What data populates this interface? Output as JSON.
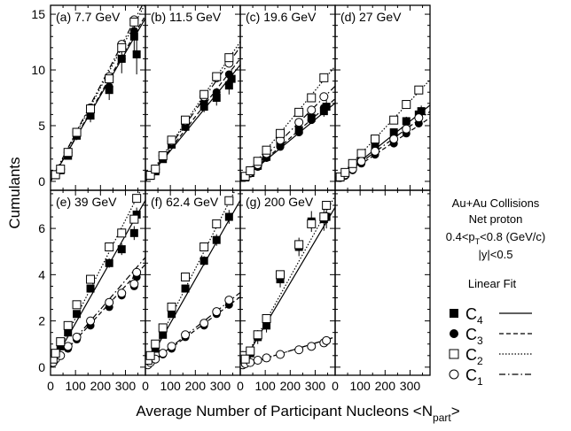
{
  "figure": {
    "ylabel": "Cumulants",
    "xlabel_main": "Average Number of Participant Nucleons <N",
    "xlabel_sub": "part",
    "xlabel_end": ">"
  },
  "legend": {
    "lines": [
      "Au+Au Collisions",
      "Net proton",
      "|y|<0.5"
    ],
    "pt_line": {
      "pre": "0.4<p",
      "sub": "T",
      "post": "<0.8 (GeV/c)"
    },
    "header": "Linear   Fit",
    "entries": [
      {
        "base": "C",
        "sub": "4",
        "marker": "filled-square",
        "dash": "solid"
      },
      {
        "base": "C",
        "sub": "3",
        "marker": "filled-circle",
        "dash": "dashed"
      },
      {
        "base": "C",
        "sub": "2",
        "marker": "open-square",
        "dash": "dotted"
      },
      {
        "base": "C",
        "sub": "1",
        "marker": "open-circle",
        "dash": "dash-dot"
      }
    ]
  },
  "chart_data": [
    {
      "type": "scatter",
      "panel": "(a)",
      "title": "(a) 7.7 GeV",
      "xlim": [
        0,
        380
      ],
      "ylim": [
        -0.8,
        15.8
      ],
      "yticks": [
        0,
        5,
        10,
        15
      ],
      "xticks": [],
      "series": [
        {
          "name": "C4",
          "x": [
            20,
            40,
            70,
            105,
            160,
            235,
            285,
            335,
            345
          ],
          "y": [
            0.55,
            1.0,
            2.3,
            4.1,
            5.9,
            8.2,
            11.0,
            13.0,
            11.4
          ],
          "errors": [
            0.1,
            0.2,
            0.3,
            0.4,
            0.6,
            0.9,
            1.3,
            1.5,
            1.8
          ],
          "fit": [
            0,
            0.0385
          ]
        },
        {
          "name": "C3",
          "x": [
            20,
            40,
            70,
            105,
            160,
            235,
            285,
            335
          ],
          "y": [
            0.55,
            1.0,
            2.5,
            4.2,
            6.0,
            8.5,
            11.0,
            13.5
          ],
          "fit": [
            0,
            0.0392
          ]
        },
        {
          "name": "C2",
          "x": [
            20,
            40,
            70,
            105,
            160,
            235,
            285,
            335
          ],
          "y": [
            0.6,
            1.1,
            2.6,
            4.4,
            6.5,
            9.2,
            12.0,
            14.3
          ],
          "fit": [
            0,
            0.042
          ]
        },
        {
          "name": "C1",
          "x": [
            20,
            40,
            70,
            105,
            160,
            235,
            285,
            335
          ],
          "y": [
            0.6,
            1.1,
            2.6,
            4.4,
            6.6,
            9.4,
            12.3,
            14.5
          ],
          "fit": [
            0,
            0.043
          ]
        }
      ]
    },
    {
      "type": "scatter",
      "panel": "(b)",
      "title": "(b) 11.5 GeV",
      "xlim": [
        0,
        380
      ],
      "ylim": [
        -0.8,
        15.8
      ],
      "yticks": [],
      "xticks": [],
      "series": [
        {
          "name": "C4",
          "x": [
            20,
            40,
            70,
            105,
            160,
            235,
            285,
            335,
            345
          ],
          "y": [
            0.5,
            0.9,
            2.0,
            3.3,
            4.9,
            6.7,
            7.5,
            8.6,
            9.2
          ],
          "errors": [
            0.1,
            0.1,
            0.2,
            0.3,
            0.4,
            0.5,
            0.7,
            0.8,
            0.9
          ],
          "fit": [
            0,
            0.0275
          ]
        },
        {
          "name": "C3",
          "x": [
            20,
            40,
            70,
            105,
            160,
            235,
            285,
            335
          ],
          "y": [
            0.5,
            1.0,
            2.1,
            3.4,
            5.1,
            7.1,
            8.0,
            9.6
          ],
          "fit": [
            0,
            0.029
          ]
        },
        {
          "name": "C2",
          "x": [
            20,
            40,
            70,
            105,
            160,
            235,
            285,
            335
          ],
          "y": [
            0.55,
            1.1,
            2.3,
            3.7,
            5.5,
            7.8,
            9.4,
            11.1
          ],
          "fit": [
            0,
            0.033
          ]
        },
        {
          "name": "C1",
          "x": [
            20,
            40,
            70,
            105,
            160,
            235,
            285,
            335
          ],
          "y": [
            0.55,
            1.1,
            2.3,
            3.6,
            5.4,
            7.6,
            9.3,
            10.6
          ],
          "fit": [
            0,
            0.0318
          ]
        }
      ]
    },
    {
      "type": "scatter",
      "panel": "(c)",
      "title": "(c) 19.6 GeV",
      "xlim": [
        0,
        380
      ],
      "ylim": [
        -0.8,
        15.8
      ],
      "yticks": [],
      "xticks": [],
      "series": [
        {
          "name": "C4",
          "x": [
            20,
            40,
            70,
            105,
            160,
            235,
            285,
            335,
            345
          ],
          "y": [
            0.35,
            0.75,
            1.4,
            2.2,
            3.4,
            4.6,
            5.7,
            6.3,
            6.7
          ],
          "errors": [
            0.1,
            0.1,
            0.2,
            0.2,
            0.3,
            0.4,
            0.5,
            0.5,
            0.6
          ],
          "fit": [
            0,
            0.0185
          ]
        },
        {
          "name": "C3",
          "x": [
            20,
            40,
            70,
            105,
            160,
            235,
            285,
            335
          ],
          "y": [
            0.35,
            0.7,
            1.3,
            2.1,
            3.1,
            4.4,
            5.5,
            6.6
          ],
          "fit": [
            0,
            0.0195
          ]
        },
        {
          "name": "C2",
          "x": [
            20,
            40,
            70,
            105,
            160,
            235,
            285,
            335
          ],
          "y": [
            0.45,
            0.95,
            1.8,
            2.8,
            4.3,
            6.2,
            7.5,
            9.3
          ],
          "fit": [
            0,
            0.0272
          ]
        },
        {
          "name": "C1",
          "x": [
            20,
            40,
            70,
            105,
            160,
            235,
            285,
            335
          ],
          "y": [
            0.4,
            0.8,
            1.5,
            2.5,
            3.7,
            5.3,
            6.4,
            7.6
          ],
          "fit": [
            0,
            0.0225
          ]
        }
      ]
    },
    {
      "type": "scatter",
      "panel": "(d)",
      "title": "(d) 27 GeV",
      "xlim": [
        0,
        380
      ],
      "ylim": [
        -0.8,
        15.8
      ],
      "yticks": [],
      "xticks": [],
      "series": [
        {
          "name": "C4",
          "x": [
            20,
            40,
            70,
            105,
            160,
            235,
            285,
            335,
            345
          ],
          "y": [
            0.35,
            0.7,
            1.3,
            2.1,
            3.2,
            4.4,
            5.4,
            6.0,
            6.3
          ],
          "errors": [
            0.1,
            0.1,
            0.1,
            0.2,
            0.2,
            0.3,
            0.4,
            0.4,
            0.5
          ],
          "fit": [
            0,
            0.018
          ]
        },
        {
          "name": "C3",
          "x": [
            20,
            40,
            70,
            105,
            160,
            235,
            285,
            335
          ],
          "y": [
            0.3,
            0.5,
            1.0,
            1.6,
            2.4,
            3.4,
            4.3,
            5.2
          ],
          "fit": [
            0,
            0.015
          ]
        },
        {
          "name": "C2",
          "x": [
            20,
            40,
            70,
            105,
            160,
            235,
            285,
            335
          ],
          "y": [
            0.4,
            0.8,
            1.6,
            2.5,
            3.8,
            5.5,
            6.9,
            8.2
          ],
          "fit": [
            0,
            0.024
          ]
        },
        {
          "name": "C1",
          "x": [
            20,
            40,
            70,
            105,
            160,
            235,
            285,
            335
          ],
          "y": [
            0.35,
            0.6,
            1.1,
            1.8,
            2.7,
            3.8,
            4.7,
            5.7
          ],
          "fit": [
            0,
            0.0165
          ]
        }
      ]
    },
    {
      "type": "scatter",
      "panel": "(e)",
      "title": "(e) 39 GeV",
      "xlim": [
        0,
        380
      ],
      "ylim": [
        -0.35,
        7.65
      ],
      "yticks": [
        0,
        2,
        4,
        6
      ],
      "xticks": [
        0,
        100,
        200,
        300
      ],
      "series": [
        {
          "name": "C4",
          "x": [
            10,
            20,
            40,
            70,
            105,
            160,
            235,
            285,
            335,
            345
          ],
          "y": [
            0.3,
            0.5,
            0.9,
            1.5,
            2.3,
            3.4,
            4.5,
            5.1,
            5.8,
            6.6
          ],
          "errors": [
            0.05,
            0.05,
            0.1,
            0.1,
            0.1,
            0.15,
            0.2,
            0.25,
            0.3,
            0.3
          ],
          "fit": [
            0,
            0.019
          ]
        },
        {
          "name": "C3",
          "x": [
            10,
            20,
            40,
            70,
            105,
            160,
            235,
            285,
            335,
            345
          ],
          "y": [
            0.2,
            0.35,
            0.5,
            0.8,
            1.2,
            1.8,
            2.6,
            3.1,
            3.5,
            3.9
          ],
          "fit": [
            0,
            0.0117
          ]
        },
        {
          "name": "C2",
          "x": [
            10,
            20,
            40,
            70,
            105,
            160,
            235,
            285,
            335,
            345
          ],
          "y": [
            0.35,
            0.6,
            1.1,
            1.8,
            2.7,
            3.8,
            5.2,
            5.8,
            6.4,
            7.3
          ],
          "fit": [
            0,
            0.0212
          ]
        },
        {
          "name": "C1",
          "x": [
            10,
            20,
            40,
            70,
            105,
            160,
            235,
            285,
            335,
            345
          ],
          "y": [
            0.2,
            0.35,
            0.5,
            0.9,
            1.3,
            2.0,
            2.8,
            3.2,
            3.6,
            4.1
          ],
          "fit": [
            0,
            0.0125
          ]
        }
      ]
    },
    {
      "type": "scatter",
      "panel": "(f)",
      "title": "(f) 62.4 GeV",
      "xlim": [
        0,
        380
      ],
      "ylim": [
        -0.35,
        7.65
      ],
      "yticks": [],
      "xticks": [
        0,
        100,
        200,
        300
      ],
      "series": [
        {
          "name": "C4",
          "x": [
            10,
            20,
            40,
            70,
            105,
            160,
            235,
            285,
            335
          ],
          "y": [
            0.2,
            0.4,
            0.8,
            1.4,
            2.3,
            3.4,
            4.6,
            5.5,
            6.5
          ],
          "errors": [
            0.05,
            0.05,
            0.1,
            0.1,
            0.1,
            0.15,
            0.2,
            0.25,
            0.3
          ],
          "fit": [
            0,
            0.019
          ]
        },
        {
          "name": "C3",
          "x": [
            10,
            20,
            40,
            70,
            105,
            160,
            235,
            285,
            335
          ],
          "y": [
            0.1,
            0.2,
            0.35,
            0.55,
            0.8,
            1.3,
            1.8,
            2.3,
            2.7
          ],
          "fit": [
            0,
            0.008
          ]
        },
        {
          "name": "C2",
          "x": [
            10,
            20,
            40,
            70,
            105,
            160,
            235,
            285,
            335
          ],
          "y": [
            0.3,
            0.5,
            1.0,
            1.7,
            2.6,
            3.9,
            5.2,
            6.2,
            7.2
          ],
          "fit": [
            0,
            0.0213
          ]
        },
        {
          "name": "C1",
          "x": [
            10,
            20,
            40,
            70,
            105,
            160,
            235,
            285,
            335
          ],
          "y": [
            0.1,
            0.2,
            0.35,
            0.6,
            0.9,
            1.4,
            1.9,
            2.4,
            2.9
          ],
          "fit": [
            0,
            0.0085
          ]
        }
      ]
    },
    {
      "type": "scatter",
      "panel": "(g)",
      "title": "(g) 200 GeV",
      "xlim": [
        0,
        380
      ],
      "ylim": [
        -0.35,
        7.65
      ],
      "yticks": [],
      "xticks": [
        0,
        100,
        200,
        300
      ],
      "series": [
        {
          "name": "C4",
          "x": [
            10,
            20,
            40,
            70,
            105,
            160,
            235,
            285,
            335,
            345
          ],
          "y": [
            0.5,
            0.3,
            0.6,
            1.3,
            1.8,
            3.8,
            5.2,
            6.3,
            6.4,
            6.5
          ],
          "errors": [
            0.2,
            0.2,
            0.25,
            0.3,
            0.3,
            0.35,
            0.4,
            0.45,
            0.5,
            0.5
          ],
          "fit": [
            0,
            0.0182
          ]
        },
        {
          "name": "C3",
          "x": [
            10,
            20,
            40,
            70,
            105,
            160,
            235,
            285,
            335,
            345
          ],
          "y": [
            0.1,
            0.15,
            0.2,
            0.3,
            0.4,
            0.55,
            0.75,
            0.9,
            1.05,
            1.15
          ],
          "fit": [
            0.05,
            0.0033
          ]
        },
        {
          "name": "C2",
          "x": [
            10,
            20,
            40,
            70,
            105,
            160,
            235,
            285,
            335,
            345
          ],
          "y": [
            0.5,
            0.35,
            0.7,
            1.4,
            2.1,
            4.0,
            5.3,
            6.2,
            6.5,
            7.0
          ],
          "fit": [
            0,
            0.0195
          ]
        },
        {
          "name": "C1",
          "x": [
            10,
            20,
            40,
            70,
            105,
            160,
            235,
            285,
            335,
            345
          ],
          "y": [
            0.1,
            0.15,
            0.2,
            0.3,
            0.4,
            0.55,
            0.75,
            0.9,
            1.05,
            1.15
          ],
          "fit": [
            0.05,
            0.0033
          ]
        }
      ]
    },
    {
      "type": "scatter",
      "panel": "(h)",
      "title": "",
      "xlim": [
        0,
        380
      ],
      "ylim": [
        -0.35,
        7.65
      ],
      "yticks": [],
      "xticks": [
        0,
        100,
        200,
        300
      ],
      "series": []
    }
  ]
}
